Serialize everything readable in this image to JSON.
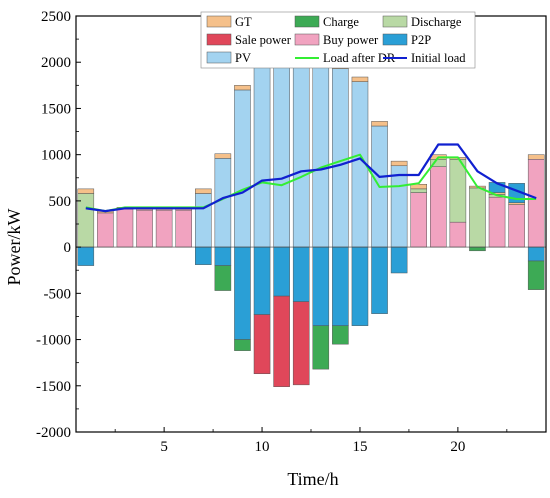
{
  "chart_data": {
    "type": "bar",
    "xlabel": "Time/h",
    "ylabel": "Power/kW",
    "xlim": [
      0.5,
      24.5
    ],
    "ylim": [
      -2000,
      2500
    ],
    "x_ticks": [
      5,
      10,
      15,
      20
    ],
    "y_ticks": [
      -2000,
      -1500,
      -1000,
      -500,
      0,
      500,
      1000,
      1500,
      2000,
      2500
    ],
    "legend_position": "top",
    "hours": [
      1,
      2,
      3,
      4,
      5,
      6,
      7,
      8,
      9,
      10,
      11,
      12,
      13,
      14,
      15,
      16,
      17,
      18,
      19,
      20,
      21,
      22,
      23,
      24
    ],
    "stack_order_positive": [
      "PV",
      "Buy power",
      "Discharge",
      "GT"
    ],
    "stack_order_negative": [
      "P2P",
      "Charge",
      "Sale power"
    ],
    "series": [
      {
        "name": "GT",
        "kind": "bar",
        "color": "#F5C08A",
        "values": [
          50,
          20,
          20,
          20,
          20,
          20,
          50,
          50,
          50,
          50,
          50,
          50,
          50,
          50,
          50,
          50,
          50,
          50,
          50,
          20,
          20,
          20,
          20,
          50
        ]
      },
      {
        "name": "Charge",
        "kind": "bar",
        "color": "#3DAA55",
        "values": [
          0,
          0,
          0,
          0,
          0,
          0,
          0,
          -270,
          -120,
          0,
          0,
          0,
          -470,
          -200,
          0,
          0,
          0,
          0,
          0,
          0,
          -40,
          0,
          0,
          -310
        ]
      },
      {
        "name": "Discharge",
        "kind": "bar",
        "color": "#B9D9A5",
        "values": [
          580,
          0,
          0,
          0,
          0,
          0,
          0,
          0,
          0,
          0,
          0,
          0,
          0,
          0,
          0,
          0,
          0,
          40,
          80,
          680,
          640,
          30,
          0,
          0
        ]
      },
      {
        "name": "Sale power",
        "kind": "bar",
        "color": "#E0475A",
        "values": [
          0,
          0,
          0,
          0,
          0,
          0,
          0,
          0,
          0,
          -640,
          -980,
          -900,
          0,
          0,
          0,
          0,
          0,
          0,
          0,
          0,
          0,
          0,
          0,
          0
        ]
      },
      {
        "name": "Buy power",
        "kind": "bar",
        "color": "#F1A3C0",
        "values": [
          0,
          370,
          410,
          400,
          400,
          400,
          0,
          0,
          0,
          0,
          0,
          0,
          0,
          0,
          0,
          0,
          0,
          590,
          870,
          270,
          0,
          540,
          460,
          950
        ]
      },
      {
        "name": "P2P",
        "kind": "bar",
        "color": "#2A9FD6",
        "values": [
          -200,
          0,
          0,
          0,
          0,
          0,
          -190,
          -200,
          -1000,
          -730,
          -530,
          -590,
          -850,
          -850,
          -850,
          -720,
          -280,
          0,
          0,
          0,
          0,
          110,
          210,
          -150
        ]
      },
      {
        "name": "PV",
        "kind": "bar",
        "color": "#A3D3F0",
        "values": [
          0,
          0,
          0,
          0,
          0,
          0,
          580,
          960,
          1700,
          2030,
          2120,
          2210,
          2130,
          1930,
          1790,
          1310,
          880,
          0,
          0,
          0,
          0,
          0,
          0,
          0
        ]
      },
      {
        "name": "Load after DR",
        "kind": "line",
        "color": "#33EE33",
        "values": [
          430,
          390,
          430,
          430,
          430,
          430,
          430,
          520,
          620,
          700,
          670,
          760,
          860,
          930,
          1000,
          650,
          660,
          690,
          970,
          970,
          650,
          560,
          520,
          520
        ]
      },
      {
        "name": "Initial load",
        "kind": "line",
        "color": "#1020D0",
        "values": [
          420,
          390,
          420,
          420,
          420,
          420,
          420,
          530,
          590,
          720,
          740,
          820,
          840,
          890,
          960,
          760,
          780,
          780,
          1110,
          1110,
          820,
          690,
          610,
          530
        ]
      }
    ]
  },
  "legend": [
    {
      "label": "GT",
      "color": "#F5C08A",
      "kind": "bar"
    },
    {
      "label": "Charge",
      "color": "#3DAA55",
      "kind": "bar"
    },
    {
      "label": "Discharge",
      "color": "#B9D9A5",
      "kind": "bar"
    },
    {
      "label": "Sale power",
      "color": "#E0475A",
      "kind": "bar"
    },
    {
      "label": "Buy power",
      "color": "#F1A3C0",
      "kind": "bar"
    },
    {
      "label": "P2P",
      "color": "#2A9FD6",
      "kind": "bar"
    },
    {
      "label": "PV",
      "color": "#A3D3F0",
      "kind": "bar"
    },
    {
      "label": "Load after DR",
      "color": "#33EE33",
      "kind": "line"
    },
    {
      "label": "Initial load",
      "color": "#1020D0",
      "kind": "line"
    }
  ]
}
